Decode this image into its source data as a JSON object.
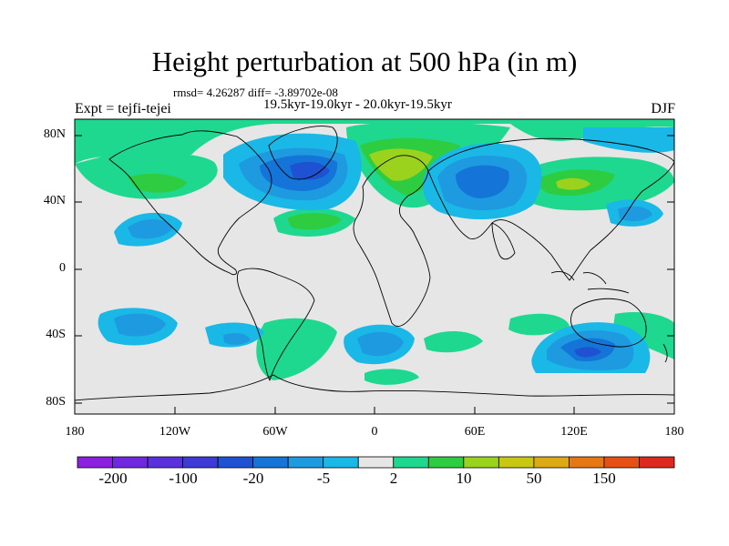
{
  "title": "Height perturbation at 500 hPa (in m)",
  "rmsd_line": "rmsd= 4.26287  diff= -3.89702e-08",
  "period": "19.5kyr-19.0kyr - 20.0kyr-19.5kyr",
  "experiment": "Expt = tejfi-tejei",
  "season": "DJF",
  "map": {
    "lat_ticks": [
      "80N",
      "40N",
      "0",
      "40S",
      "80S"
    ],
    "lon_ticks": [
      "180",
      "120W",
      "60W",
      "0",
      "60E",
      "120E",
      "180"
    ]
  },
  "colorbar": {
    "colors": [
      "#8c1fe0",
      "#6f28e0",
      "#5a30dc",
      "#3d3ad6",
      "#1e52d2",
      "#1474d8",
      "#1e9ae0",
      "#1ab8e6",
      "#e6e6e6",
      "#1fd890",
      "#2ecc40",
      "#9ad21e",
      "#c8c814",
      "#dcaa14",
      "#e67814",
      "#e65014",
      "#dc281e"
    ],
    "labels": [
      "-200",
      "-100",
      "-20",
      "-5",
      "2",
      "10",
      "50",
      "150"
    ]
  },
  "colors": {
    "background": "#e6e6e6",
    "land_outline": "#000000"
  }
}
